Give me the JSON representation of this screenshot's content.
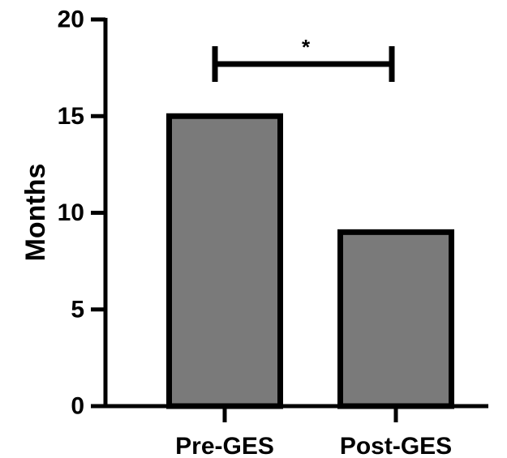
{
  "chart_data": {
    "type": "bar",
    "categories": [
      "Pre-GES",
      "Post-GES"
    ],
    "values": [
      15,
      9
    ],
    "ylabel": "Months",
    "xlabel": "",
    "ylim": [
      0,
      20
    ],
    "yticks": [
      "0",
      "5",
      "10",
      "15",
      "20"
    ],
    "grid": false,
    "legend": "none",
    "bar_color": "#7a7a7a",
    "bar_edge_color": "#000000",
    "annotation": {
      "text": "*",
      "between": [
        "Pre-GES",
        "Post-GES"
      ]
    }
  }
}
